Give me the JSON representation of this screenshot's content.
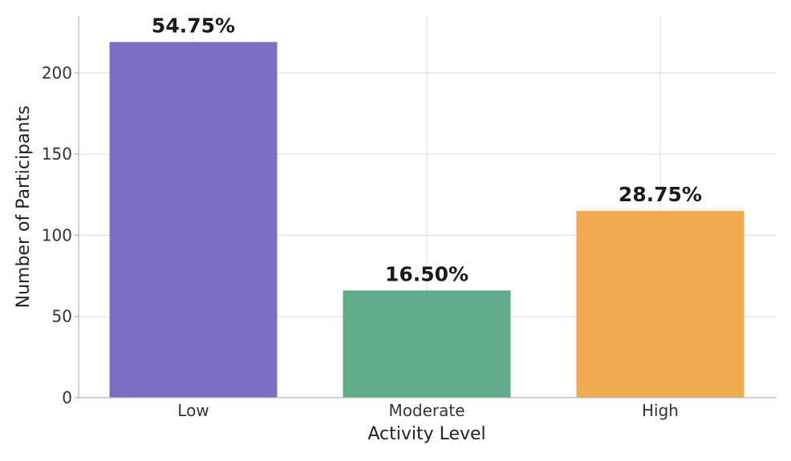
{
  "chart_data": {
    "type": "bar",
    "title": "",
    "xlabel": "Activity Level",
    "ylabel": "Number of Participants",
    "categories": [
      "Low",
      "Moderate",
      "High"
    ],
    "values": [
      219,
      66,
      115
    ],
    "data_labels": [
      "54.75%",
      "16.50%",
      "28.75%"
    ],
    "colors": [
      "#7b6fc3",
      "#5fab8a",
      "#efaa4e"
    ],
    "ylim": [
      0,
      235
    ],
    "yticks": [
      0,
      50,
      100,
      150,
      200
    ],
    "grid": true,
    "legend": "none"
  }
}
